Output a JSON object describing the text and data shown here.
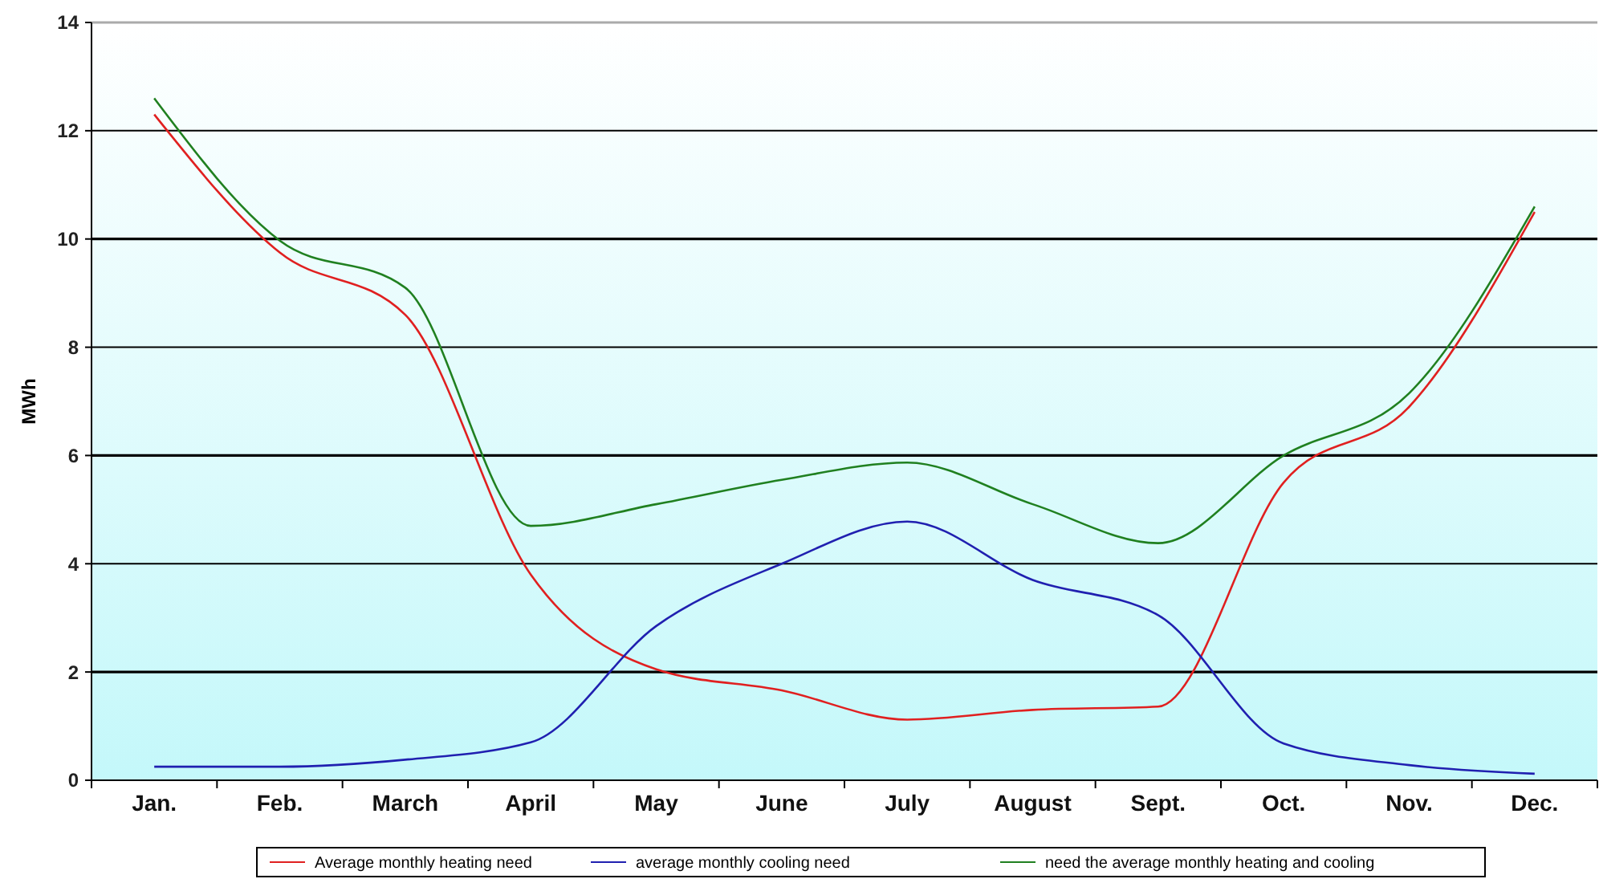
{
  "chart_data": {
    "type": "line",
    "ylabel": "MWh",
    "categories": [
      "Jan.",
      "Feb.",
      "March",
      "April",
      "May",
      "June",
      "July",
      "August",
      "Sept.",
      "Oct.",
      "Nov.",
      "Dec."
    ],
    "series": [
      {
        "name": "Average monthly heating need",
        "color": "#e02020",
        "values": [
          12.3,
          9.75,
          8.6,
          3.8,
          2.05,
          1.66,
          1.12,
          1.3,
          1.36,
          5.5,
          6.9,
          10.5
        ]
      },
      {
        "name": "average monthly cooling need",
        "color": "#2020b0",
        "values": [
          0.25,
          0.25,
          0.38,
          0.7,
          2.85,
          4.0,
          4.78,
          3.7,
          3.05,
          0.68,
          0.28,
          0.12
        ]
      },
      {
        "name": "need the average monthly heating and cooling",
        "color": "#208020",
        "values": [
          12.6,
          9.97,
          9.1,
          4.7,
          5.1,
          5.55,
          5.87,
          5.1,
          4.38,
          6.0,
          7.15,
          10.6
        ]
      }
    ],
    "ylim": [
      0,
      14
    ],
    "yticks": [
      0,
      2,
      4,
      6,
      8,
      10,
      12,
      14
    ],
    "grid": "y",
    "legend": "bottom",
    "line_style": "solid",
    "marker": "none"
  }
}
